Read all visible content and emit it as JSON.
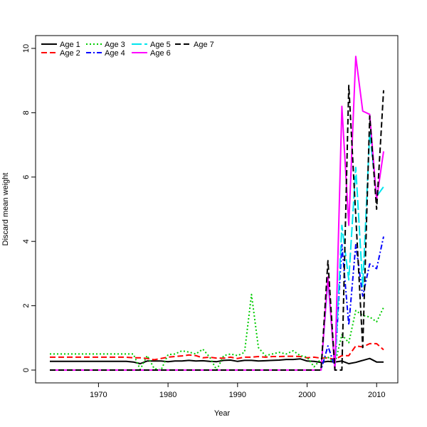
{
  "chart_data": {
    "type": "line",
    "xlabel": "Year",
    "ylabel": "Discard mean weight",
    "xlim": [
      1963,
      2011
    ],
    "ylim": [
      0,
      10
    ],
    "x_ticks": [
      1970,
      1980,
      1990,
      2000,
      2010
    ],
    "y_ticks": [
      0,
      2,
      4,
      6,
      8,
      10
    ],
    "legend_position": "top-left",
    "grid": false,
    "x": [
      1963,
      1964,
      1965,
      1966,
      1967,
      1968,
      1969,
      1970,
      1971,
      1972,
      1973,
      1974,
      1975,
      1976,
      1977,
      1978,
      1979,
      1980,
      1981,
      1982,
      1983,
      1984,
      1985,
      1986,
      1987,
      1988,
      1989,
      1990,
      1991,
      1992,
      1993,
      1994,
      1995,
      1996,
      1997,
      1998,
      1999,
      2000,
      2001,
      2002,
      2003,
      2004,
      2005,
      2006,
      2007,
      2008,
      2009,
      2010,
      2011
    ],
    "series": [
      {
        "name": "Age 1",
        "color": "#000000",
        "dash": "",
        "values": [
          0.27,
          0.27,
          0.27,
          0.27,
          0.27,
          0.27,
          0.27,
          0.27,
          0.27,
          0.27,
          0.27,
          0.27,
          0.25,
          0.2,
          0.28,
          0.28,
          0.28,
          0.26,
          0.28,
          0.28,
          0.3,
          0.28,
          0.29,
          0.27,
          0.26,
          0.3,
          0.31,
          0.27,
          0.3,
          0.3,
          0.28,
          0.29,
          0.3,
          0.31,
          0.33,
          0.33,
          0.35,
          0.28,
          0.27,
          0.24,
          0.27,
          0.25,
          0.28,
          0.2,
          0.24,
          0.3,
          0.36,
          0.25,
          0.25
        ]
      },
      {
        "name": "Age 2",
        "color": "#ff0000",
        "dash": "8,4",
        "values": [
          0.4,
          0.4,
          0.4,
          0.4,
          0.4,
          0.4,
          0.4,
          0.4,
          0.4,
          0.4,
          0.4,
          0.4,
          0.38,
          0.38,
          0.36,
          0.32,
          0.36,
          0.4,
          0.42,
          0.44,
          0.47,
          0.45,
          0.38,
          0.4,
          0.37,
          0.37,
          0.4,
          0.36,
          0.4,
          0.4,
          0.42,
          0.4,
          0.42,
          0.42,
          0.43,
          0.43,
          0.42,
          0.38,
          0.4,
          0.37,
          0.38,
          0.33,
          0.45,
          0.45,
          0.75,
          0.72,
          0.82,
          0.82,
          0.63
        ]
      },
      {
        "name": "Age 3",
        "color": "#00cc00",
        "dash": "2,3",
        "values": [
          0.5,
          0.5,
          0.5,
          0.5,
          0.5,
          0.5,
          0.5,
          0.5,
          0.5,
          0.5,
          0.5,
          0.5,
          0.5,
          0.02,
          0.45,
          0.05,
          0.0,
          0.48,
          0.5,
          0.6,
          0.56,
          0.5,
          0.65,
          0.4,
          0.0,
          0.45,
          0.5,
          0.45,
          0.55,
          2.35,
          0.7,
          0.45,
          0.5,
          0.55,
          0.5,
          0.6,
          0.45,
          0.4,
          0.1,
          0.35,
          0.4,
          0.2,
          1.1,
          0.85,
          1.85,
          1.7,
          1.65,
          1.5,
          1.95
        ]
      },
      {
        "name": "Age 4",
        "color": "#0000ff",
        "dash": "7,3,2,3",
        "values": [
          0,
          0,
          0,
          0,
          0,
          0,
          0,
          0,
          0,
          0,
          0,
          0,
          0,
          0,
          0,
          0,
          0,
          0,
          0,
          0,
          0,
          0,
          0,
          0,
          0,
          0,
          0,
          0,
          0,
          0,
          0,
          0,
          0,
          0,
          0,
          0,
          0,
          0,
          0,
          0,
          0.75,
          0.1,
          3.9,
          1.4,
          3.9,
          2.3,
          3.3,
          3.15,
          4.15
        ]
      },
      {
        "name": "Age 5",
        "color": "#00e5ee",
        "dash": "14,4",
        "values": [
          0,
          0,
          0,
          0,
          0,
          0,
          0,
          0,
          0,
          0,
          0,
          0,
          0,
          0,
          0,
          0,
          0,
          0,
          0,
          0,
          0,
          0,
          0,
          0,
          0,
          0,
          0,
          0,
          0,
          0,
          0,
          0,
          0,
          0,
          0,
          0,
          0,
          0,
          0,
          0,
          2.8,
          0.05,
          4.5,
          2.8,
          6.3,
          2.6,
          7.4,
          5.4,
          5.7
        ]
      },
      {
        "name": "Age 6",
        "color": "#ff00ff",
        "dash": "",
        "values": [
          0,
          0,
          0,
          0,
          0,
          0,
          0,
          0,
          0,
          0,
          0,
          0,
          0,
          0,
          0,
          0,
          0,
          0,
          0,
          0,
          0,
          0,
          0,
          0,
          0,
          0,
          0,
          0,
          0,
          0,
          0,
          0,
          0,
          0,
          0,
          0,
          0,
          0,
          0,
          0,
          2.9,
          0.0,
          8.2,
          4.5,
          9.75,
          8.05,
          7.95,
          5.3,
          6.8
        ]
      },
      {
        "name": "Age 7",
        "color": "#000000",
        "dash": "8,4",
        "values": [
          0,
          0,
          0,
          0,
          0,
          0,
          0,
          0,
          0,
          0,
          0,
          0,
          0,
          0,
          0,
          0,
          0,
          0,
          0,
          0,
          0,
          0,
          0,
          0,
          0,
          0,
          0,
          0,
          0,
          0,
          0,
          0,
          0,
          0,
          0,
          0,
          0,
          0,
          0,
          0,
          3.4,
          0.0,
          0.0,
          8.85,
          4.8,
          0.7,
          7.9,
          5.0,
          8.7
        ]
      }
    ]
  }
}
